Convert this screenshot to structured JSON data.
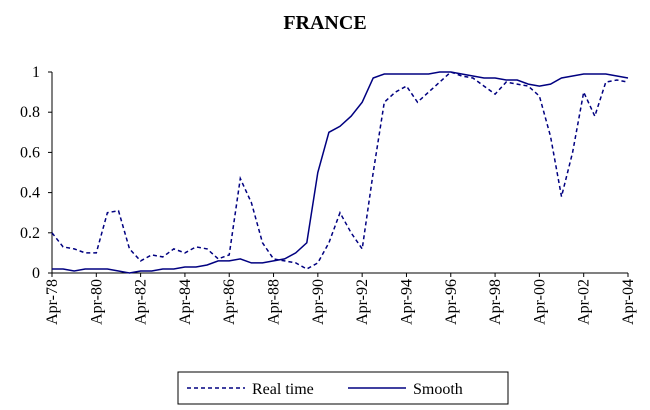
{
  "chart_data": {
    "type": "line",
    "title": "FRANCE",
    "categories": [
      "Apr-78",
      null,
      null,
      null,
      "Apr-80",
      null,
      null,
      null,
      "Apr-82",
      null,
      null,
      null,
      "Apr-84",
      null,
      null,
      null,
      "Apr-86",
      null,
      null,
      null,
      "Apr-88",
      null,
      null,
      null,
      "Apr-90",
      null,
      null,
      null,
      "Apr-92",
      null,
      null,
      null,
      "Apr-94",
      null,
      null,
      null,
      "Apr-96",
      null,
      null,
      null,
      "Apr-98",
      null,
      null,
      null,
      "Apr-00",
      null,
      null,
      null,
      "Apr-02",
      null,
      null,
      null,
      "Apr-04"
    ],
    "series": [
      {
        "name": "Real time",
        "color": "#000080",
        "style": "dashed",
        "values": [
          0.2,
          0.13,
          0.12,
          0.1,
          0.1,
          0.3,
          0.31,
          0.12,
          0.06,
          0.09,
          0.08,
          0.12,
          0.1,
          0.13,
          0.12,
          0.07,
          0.09,
          0.47,
          0.35,
          0.15,
          0.07,
          0.06,
          0.05,
          0.02,
          0.05,
          0.15,
          0.3,
          0.2,
          0.12,
          0.5,
          0.85,
          0.9,
          0.93,
          0.85,
          0.9,
          0.95,
          1.0,
          0.98,
          0.97,
          0.93,
          0.89,
          0.95,
          0.94,
          0.93,
          0.88,
          0.68,
          0.38,
          0.6,
          0.9,
          0.78,
          0.95,
          0.96,
          0.95
        ]
      },
      {
        "name": "Smooth",
        "color": "#000080",
        "style": "solid",
        "values": [
          0.02,
          0.02,
          0.01,
          0.02,
          0.02,
          0.02,
          0.01,
          0.0,
          0.01,
          0.01,
          0.02,
          0.02,
          0.03,
          0.03,
          0.04,
          0.06,
          0.06,
          0.07,
          0.05,
          0.05,
          0.06,
          0.07,
          0.1,
          0.15,
          0.5,
          0.7,
          0.73,
          0.78,
          0.85,
          0.97,
          0.99,
          0.99,
          0.99,
          0.99,
          0.99,
          1.0,
          1.0,
          0.99,
          0.98,
          0.97,
          0.97,
          0.96,
          0.96,
          0.94,
          0.93,
          0.94,
          0.97,
          0.98,
          0.99,
          0.99,
          0.99,
          0.98,
          0.97
        ]
      }
    ],
    "ylim": [
      0,
      1
    ],
    "yticks": [
      0,
      0.2,
      0.4,
      0.6,
      0.8,
      1
    ],
    "grid": false,
    "legend": "bottom"
  }
}
